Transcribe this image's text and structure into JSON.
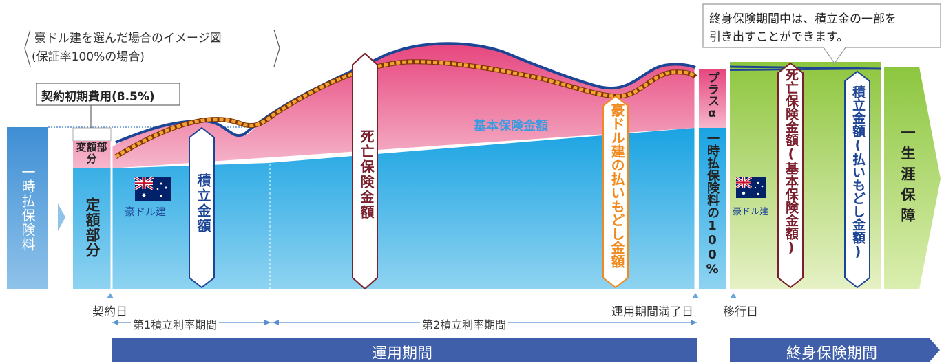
{
  "caption": {
    "line1": "豪ドル建を選んだ場合のイメージ図",
    "line2": "(保証率100%の場合)"
  },
  "initial_cost_label": "契約初期費用(8.5%)",
  "lump_sum_label": "一時払保険料",
  "variable_part_label": "変額部分",
  "fixed_part_label": "定額部分",
  "aud_label": "豪ドル建",
  "accumulated_label": "積立金額",
  "death_benefit_label": "死亡保険金額",
  "base_insured_label": "基本保険金額",
  "aud_refund_label": "豪ドル建の払いもどし金額",
  "plus_alpha_label": "プラスα",
  "premium_100_label": "一時払保険料の100%",
  "callout": {
    "line1": "終身保険期間中は、積立金の一部を",
    "line2": "引き出すことができます。"
  },
  "death_base_label": "死亡保険金額(基本保険金額)",
  "accum_refund_label": "積立金額(払いもどし金額)",
  "lifetime_label": "一生涯保障",
  "timeline": {
    "contract_day": "契約日",
    "period1": "第1積立利率期間",
    "period2": "第2積立利率期間",
    "maturity_day": "運用期間満了日",
    "transition_day": "移行日"
  },
  "operation_period_label": "運用期間",
  "lifetime_period_label": "終身保険期間",
  "colors": {
    "blue_dark": "#1d4596",
    "sky": "#27a8e0",
    "pink": "#e8608d",
    "orange": "#f08a1e",
    "green": "#8cc63f",
    "maroon": "#7a1f2b",
    "period_bar": "#3f5fab"
  }
}
